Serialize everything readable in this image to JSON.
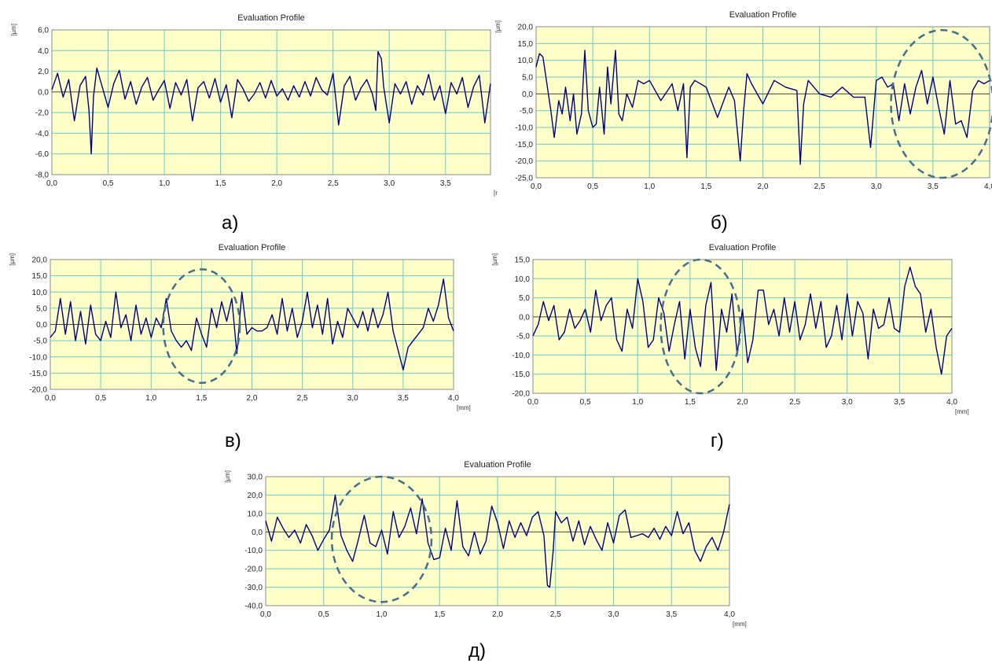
{
  "chart_data": [
    {
      "type": "line",
      "title": "Evaluation Profile",
      "ylabel": "[µm]",
      "xlabel": "[r",
      "caption": "а)",
      "ylim": [
        -8,
        6
      ],
      "yticks": [
        6,
        4,
        2,
        0,
        -2,
        -4,
        -6,
        -8
      ],
      "ytick_labels": [
        "6,0",
        "4,0",
        "2,0",
        "0,0",
        "-2,0",
        "-4,0",
        "-6,0",
        "-8,0"
      ],
      "xlim": [
        0,
        3.9
      ],
      "xticks": [
        0,
        0.5,
        1,
        1.5,
        2,
        2.5,
        3,
        3.5
      ],
      "xtick_labels": [
        "0,0",
        "0,5",
        "1,0",
        "1,5",
        "2,0",
        "2,5",
        "3,0",
        "3,5"
      ],
      "grid": true,
      "colors": {
        "plot_bg": "#ffffc8",
        "grid": "#66cccc",
        "line": "#000080",
        "ellipse": "#436f8f"
      },
      "series": [
        {
          "x": [
            0,
            0.05,
            0.1,
            0.15,
            0.2,
            0.25,
            0.3,
            0.33,
            0.35,
            0.37,
            0.4,
            0.45,
            0.5,
            0.55,
            0.6,
            0.65,
            0.7,
            0.75,
            0.8,
            0.85,
            0.9,
            0.95,
            1.0,
            1.05,
            1.1,
            1.15,
            1.2,
            1.25,
            1.3,
            1.35,
            1.4,
            1.45,
            1.5,
            1.55,
            1.6,
            1.65,
            1.7,
            1.75,
            1.8,
            1.85,
            1.9,
            1.95,
            2.0,
            2.05,
            2.1,
            2.15,
            2.2,
            2.25,
            2.3,
            2.35,
            2.4,
            2.45,
            2.5,
            2.55,
            2.6,
            2.65,
            2.7,
            2.75,
            2.8,
            2.85,
            2.88,
            2.9,
            2.93,
            2.95,
            3.0,
            3.05,
            3.1,
            3.15,
            3.2,
            3.25,
            3.3,
            3.35,
            3.4,
            3.45,
            3.5,
            3.55,
            3.6,
            3.65,
            3.7,
            3.75,
            3.8,
            3.85,
            3.9
          ],
          "values": [
            0.2,
            1.8,
            -0.5,
            1.2,
            -2.8,
            0.6,
            1.5,
            -1.8,
            -6.0,
            -0.5,
            2.3,
            0.4,
            -1.5,
            0.8,
            2.1,
            -0.7,
            1.0,
            -1.2,
            0.5,
            1.4,
            -0.8,
            0.2,
            1.1,
            -1.6,
            0.9,
            -0.3,
            1.2,
            -2.8,
            0.4,
            1.0,
            -0.6,
            1.3,
            -1.0,
            0.7,
            -2.5,
            1.2,
            0.3,
            -0.9,
            -0.2,
            0.9,
            -0.6,
            1.1,
            -0.4,
            0.3,
            -0.8,
            0.6,
            -0.5,
            1.0,
            -0.4,
            1.4,
            0.2,
            -0.3,
            1.8,
            -3.2,
            0.6,
            1.5,
            -0.8,
            0.4,
            1.2,
            -0.2,
            -1.8,
            3.9,
            3.2,
            0.5,
            -3.0,
            0.8,
            -0.2,
            1.0,
            -1.2,
            0.6,
            -0.3,
            1.7,
            -0.8,
            0.6,
            -2.1,
            0.9,
            -0.2,
            1.4,
            -1.5,
            0.5,
            1.6,
            -3.0,
            0.8
          ]
        }
      ]
    },
    {
      "type": "line",
      "title": "Evaluation Profile",
      "ylabel": "[µm]",
      "xlabel": "[mm]",
      "caption": "б)",
      "ylim": [
        -25,
        20
      ],
      "yticks": [
        20,
        15,
        10,
        5,
        0,
        -5,
        -10,
        -15,
        -20,
        -25
      ],
      "ytick_labels": [
        "20,0",
        "15,0",
        "10,0",
        "5,0",
        "0,0",
        "-5,0",
        "-10,0",
        "-15,0",
        "-20,0",
        "-25,0"
      ],
      "xlim": [
        0,
        4
      ],
      "xticks": [
        0,
        0.5,
        1,
        1.5,
        2,
        2.5,
        3,
        3.5,
        4
      ],
      "xtick_labels": [
        "0,0",
        "0,5",
        "1,0",
        "1,5",
        "2,0",
        "2,5",
        "3,0",
        "3,5",
        "4,0"
      ],
      "grid": true,
      "ellipse": {
        "cx": 3.58,
        "cy": -3,
        "rx": 0.45,
        "ry": 22
      },
      "series": [
        {
          "x": [
            0,
            0.03,
            0.06,
            0.1,
            0.13,
            0.16,
            0.2,
            0.23,
            0.26,
            0.3,
            0.33,
            0.36,
            0.4,
            0.43,
            0.46,
            0.5,
            0.53,
            0.56,
            0.6,
            0.63,
            0.66,
            0.7,
            0.73,
            0.76,
            0.8,
            0.85,
            0.9,
            0.95,
            1.0,
            1.1,
            1.2,
            1.25,
            1.3,
            1.33,
            1.36,
            1.4,
            1.5,
            1.6,
            1.7,
            1.75,
            1.8,
            1.83,
            1.86,
            1.9,
            2.0,
            2.1,
            2.2,
            2.3,
            2.33,
            2.36,
            2.4,
            2.5,
            2.6,
            2.7,
            2.8,
            2.9,
            2.95,
            2.98,
            3.0,
            3.05,
            3.1,
            3.15,
            3.2,
            3.25,
            3.3,
            3.35,
            3.4,
            3.45,
            3.5,
            3.55,
            3.6,
            3.65,
            3.7,
            3.75,
            3.8,
            3.85,
            3.9,
            3.95,
            4.0
          ],
          "values": [
            8,
            12,
            11,
            2,
            -5,
            -13,
            -2,
            -6,
            2,
            -8,
            0,
            -12,
            -6,
            13,
            -5,
            -10,
            -9,
            2,
            -12,
            8,
            -3,
            13,
            -6,
            -8,
            0,
            -4,
            4,
            3,
            4,
            -2,
            3,
            -5,
            3,
            -19,
            2,
            4,
            2,
            -7,
            2,
            -2,
            -20,
            -5,
            6,
            3,
            -3,
            4,
            2,
            1,
            -21,
            -3,
            4,
            0,
            -1,
            2,
            -1,
            -1,
            -16,
            -4,
            4,
            5,
            2,
            3,
            -8,
            3,
            -6,
            2,
            7,
            -3,
            5,
            -4,
            -12,
            4,
            -9,
            -8,
            -13,
            1,
            4,
            3,
            4
          ]
        }
      ]
    },
    {
      "type": "line",
      "title": "Evaluation Profile",
      "ylabel": "[µm]",
      "xlabel": "[mm]",
      "caption": "в)",
      "ylim": [
        -20,
        20
      ],
      "yticks": [
        20,
        15,
        10,
        5,
        0,
        -5,
        -10,
        -15,
        -20
      ],
      "ytick_labels": [
        "20,0",
        "15,0",
        "10,0",
        "5,0",
        "0,0",
        "-5,0",
        "-10,0",
        "-15,0",
        "-20,0"
      ],
      "xlim": [
        0,
        4
      ],
      "xticks": [
        0,
        0.5,
        1,
        1.5,
        2,
        2.5,
        3,
        3.5,
        4
      ],
      "xtick_labels": [
        "0,0",
        "0,5",
        "1,0",
        "1,5",
        "2,0",
        "2,5",
        "3,0",
        "3,5",
        "4,0"
      ],
      "grid": true,
      "ellipse": {
        "cx": 1.5,
        "cy": -0.5,
        "rx": 0.38,
        "ry": 17.5
      },
      "series": [
        {
          "x": [
            0,
            0.05,
            0.1,
            0.15,
            0.2,
            0.25,
            0.3,
            0.35,
            0.4,
            0.45,
            0.5,
            0.55,
            0.6,
            0.65,
            0.7,
            0.75,
            0.8,
            0.85,
            0.9,
            0.95,
            1.0,
            1.05,
            1.1,
            1.15,
            1.2,
            1.25,
            1.3,
            1.35,
            1.4,
            1.45,
            1.5,
            1.55,
            1.6,
            1.65,
            1.7,
            1.75,
            1.8,
            1.85,
            1.9,
            1.95,
            2.0,
            2.05,
            2.1,
            2.15,
            2.2,
            2.25,
            2.3,
            2.35,
            2.4,
            2.45,
            2.5,
            2.55,
            2.6,
            2.65,
            2.7,
            2.75,
            2.8,
            2.85,
            2.9,
            2.95,
            3.0,
            3.05,
            3.1,
            3.15,
            3.2,
            3.25,
            3.3,
            3.35,
            3.4,
            3.45,
            3.5,
            3.55,
            3.6,
            3.65,
            3.7,
            3.75,
            3.8,
            3.85,
            3.9,
            3.95,
            4.0
          ],
          "values": [
            -4,
            -2,
            8,
            -3,
            7,
            -5,
            4,
            -6,
            6,
            -3,
            -5,
            1,
            -4,
            10,
            -1,
            3,
            -5,
            6,
            -3,
            2,
            -4,
            2,
            -1,
            8,
            -2,
            -5,
            -7,
            -5,
            -8,
            2,
            -3,
            -7,
            5,
            -1,
            7,
            1,
            8,
            -9,
            10,
            -3,
            -1,
            -2,
            -2,
            -1,
            3,
            -3,
            8,
            -2,
            5,
            -4,
            1,
            10,
            -1,
            6,
            -3,
            8,
            -6,
            1,
            -4,
            5,
            2,
            -1,
            4,
            -2,
            5,
            -1,
            3,
            10,
            -2,
            -8,
            -14,
            -7,
            -5,
            -3,
            -1,
            5,
            1,
            6,
            14,
            2,
            -2
          ]
        }
      ]
    },
    {
      "type": "line",
      "title": "Evaluation Profile",
      "ylabel": "[µm]",
      "xlabel": "[mm]",
      "caption": "г)",
      "ylim": [
        -20,
        15
      ],
      "yticks": [
        15,
        10,
        5,
        0,
        -5,
        -10,
        -15,
        -20
      ],
      "ytick_labels": [
        "15,0",
        "10,0",
        "5,0",
        "0,0",
        "-5,0",
        "-10,0",
        "-15,0",
        "-20,0"
      ],
      "xlim": [
        0,
        4
      ],
      "xticks": [
        0,
        0.5,
        1,
        1.5,
        2,
        2.5,
        3,
        3.5,
        4
      ],
      "xtick_labels": [
        "0,0",
        "0,5",
        "1,0",
        "1,5",
        "2,0",
        "2,5",
        "3,0",
        "3,5",
        "4,0"
      ],
      "grid": true,
      "ellipse": {
        "cx": 1.6,
        "cy": -2.5,
        "rx": 0.38,
        "ry": 17.5
      },
      "series": [
        {
          "x": [
            0,
            0.05,
            0.1,
            0.15,
            0.2,
            0.25,
            0.3,
            0.35,
            0.4,
            0.45,
            0.5,
            0.55,
            0.6,
            0.65,
            0.7,
            0.75,
            0.8,
            0.85,
            0.9,
            0.95,
            1.0,
            1.05,
            1.1,
            1.15,
            1.2,
            1.25,
            1.3,
            1.35,
            1.4,
            1.45,
            1.5,
            1.55,
            1.6,
            1.65,
            1.7,
            1.75,
            1.8,
            1.85,
            1.9,
            1.95,
            2.0,
            2.05,
            2.1,
            2.15,
            2.2,
            2.25,
            2.3,
            2.35,
            2.4,
            2.45,
            2.5,
            2.55,
            2.6,
            2.65,
            2.7,
            2.75,
            2.8,
            2.85,
            2.9,
            2.95,
            3.0,
            3.05,
            3.1,
            3.15,
            3.2,
            3.25,
            3.3,
            3.35,
            3.4,
            3.45,
            3.5,
            3.55,
            3.6,
            3.65,
            3.7,
            3.75,
            3.8,
            3.85,
            3.9,
            3.95,
            4.0
          ],
          "values": [
            -5,
            -2,
            4,
            -1,
            3,
            -6,
            -4,
            2,
            -3,
            -1,
            2,
            -4,
            7,
            -1,
            3,
            5,
            -6,
            -9,
            2,
            -3,
            10,
            4,
            -8,
            -6,
            5,
            1,
            -9,
            -2,
            4,
            -11,
            2,
            -8,
            -13,
            3,
            9,
            -14,
            2,
            -4,
            6,
            -10,
            2,
            -12,
            -6,
            7,
            7,
            -2,
            2,
            -5,
            5,
            -4,
            4,
            -6,
            -2,
            6,
            -3,
            4,
            -8,
            -5,
            3,
            -6,
            6,
            -5,
            4,
            1,
            -11,
            2,
            -3,
            -2,
            5,
            -3,
            -4,
            8,
            13,
            8,
            6,
            -4,
            2,
            -8,
            -15,
            -5,
            -3
          ]
        }
      ]
    },
    {
      "type": "line",
      "title": "Evaluation Profile",
      "ylabel": "[µm]",
      "xlabel": "[mm]",
      "caption": "д)",
      "ylim": [
        -40,
        30
      ],
      "yticks": [
        30,
        20,
        10,
        0,
        -10,
        -20,
        -30,
        -40
      ],
      "ytick_labels": [
        "30,0",
        "20,0",
        "10,0",
        "0,0",
        "-10,0",
        "-20,0",
        "-30,0",
        "-40,0"
      ],
      "xlim": [
        0,
        4
      ],
      "xticks": [
        0,
        0.5,
        1,
        1.5,
        2,
        2.5,
        3,
        3.5,
        4
      ],
      "xtick_labels": [
        "0,0",
        "0,5",
        "1,0",
        "1,5",
        "2,0",
        "2,5",
        "3,0",
        "3,5",
        "4,0"
      ],
      "grid": true,
      "ellipse": {
        "cx": 1.0,
        "cy": -4,
        "rx": 0.43,
        "ry": 34
      },
      "series": [
        {
          "x": [
            0,
            0.05,
            0.1,
            0.15,
            0.2,
            0.25,
            0.3,
            0.35,
            0.4,
            0.45,
            0.5,
            0.55,
            0.6,
            0.65,
            0.7,
            0.75,
            0.8,
            0.85,
            0.9,
            0.95,
            1.0,
            1.05,
            1.1,
            1.15,
            1.2,
            1.25,
            1.3,
            1.35,
            1.4,
            1.45,
            1.5,
            1.55,
            1.6,
            1.65,
            1.7,
            1.75,
            1.8,
            1.85,
            1.9,
            1.95,
            2.0,
            2.05,
            2.1,
            2.15,
            2.2,
            2.25,
            2.3,
            2.35,
            2.4,
            2.43,
            2.45,
            2.48,
            2.5,
            2.55,
            2.6,
            2.65,
            2.7,
            2.75,
            2.8,
            2.85,
            2.9,
            2.95,
            3.0,
            3.05,
            3.1,
            3.15,
            3.2,
            3.25,
            3.3,
            3.35,
            3.4,
            3.45,
            3.5,
            3.55,
            3.6,
            3.65,
            3.7,
            3.75,
            3.8,
            3.85,
            3.9,
            3.95,
            4.0
          ],
          "values": [
            6,
            -5,
            8,
            2,
            -3,
            1,
            -6,
            4,
            -2,
            -10,
            -4,
            1,
            20,
            -2,
            -10,
            -16,
            -4,
            9,
            -6,
            -8,
            1,
            -12,
            11,
            -3,
            3,
            13,
            -1,
            18,
            -6,
            -15,
            -14,
            2,
            -10,
            17,
            -8,
            -13,
            0,
            -12,
            -5,
            14,
            5,
            -9,
            6,
            -3,
            5,
            -2,
            8,
            11,
            -2,
            -29,
            -30,
            -10,
            11,
            5,
            8,
            -5,
            6,
            -7,
            3,
            -4,
            -10,
            5,
            -6,
            9,
            12,
            -3,
            -2,
            -1,
            -3,
            2,
            -4,
            3,
            -2,
            11,
            -1,
            5,
            -10,
            -16,
            -8,
            -3,
            -10,
            0,
            15
          ]
        }
      ]
    }
  ]
}
